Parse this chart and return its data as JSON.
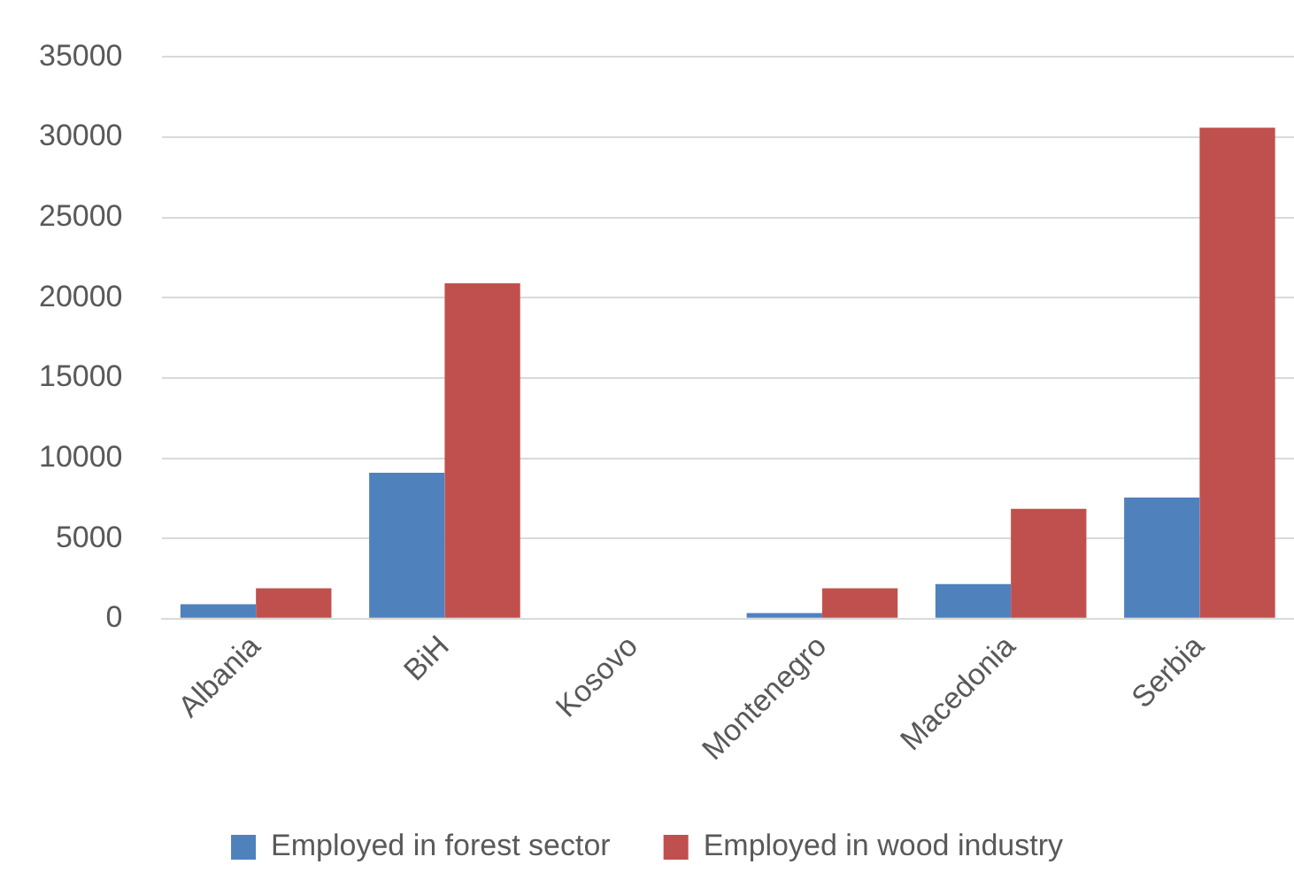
{
  "chart_data": {
    "type": "bar",
    "categories": [
      "Albania",
      "BiH",
      "Kosovo",
      "Montenegro",
      "Macedonia",
      "Serbia"
    ],
    "series": [
      {
        "name": "Employed in forest sector",
        "color": "#4f81bd",
        "values": [
          900,
          9100,
          null,
          350,
          2150,
          7550
        ]
      },
      {
        "name": "Employed in wood industry",
        "color": "#c0504d",
        "values": [
          1900,
          20900,
          null,
          1900,
          6850,
          30600
        ]
      }
    ],
    "ylim": [
      0,
      35000
    ],
    "yticks": [
      0,
      5000,
      10000,
      15000,
      20000,
      25000,
      30000,
      35000
    ],
    "grid": "y",
    "legend": "bottom"
  }
}
